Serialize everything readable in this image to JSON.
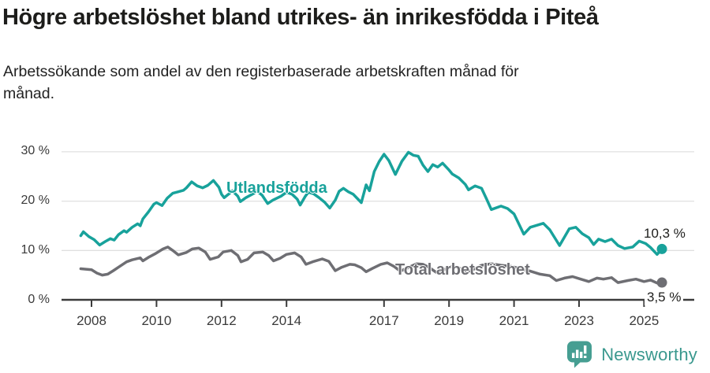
{
  "header": {
    "title": "Högre arbetslöshet bland utrikes- än inrikesfödda i Piteå",
    "subtitle": [
      "Arbetssökande som andel av den registerbaserade arbetskraften månad för",
      "månad."
    ]
  },
  "footer": {
    "brand": "Newsworthy"
  },
  "colors": {
    "accent_teal": "#18a29b",
    "series_gray": "#6e6e73",
    "axis": "#3b3b3b",
    "grid": "#e0e0e0",
    "text_dark": "#1d1d1b",
    "tick_text": "#3a3a3a",
    "logo_teal": "#469e92"
  },
  "chart_data": {
    "type": "line",
    "title": "Högre arbetslöshet bland utrikes- än inrikesfödda i Piteå",
    "subtitle": "Arbetssökande som andel av den registerbaserade arbetskraften månad för månad.",
    "xlabel": "",
    "ylabel": "",
    "unit": "%",
    "grid": "horizontal",
    "legend_position": "inline-labels",
    "xlim": [
      2007.6,
      2026.3
    ],
    "ylim": [
      0,
      32
    ],
    "x_ticks": [
      2008,
      2010,
      2012,
      2014,
      2017,
      2019,
      2021,
      2023,
      2025
    ],
    "x_tick_labels": [
      "2008",
      "2010",
      "2012",
      "2014",
      "2017",
      "2019",
      "2021",
      "2023",
      "2025"
    ],
    "y_ticks": [
      0,
      10,
      20,
      30
    ],
    "y_tick_labels": [
      "0 %",
      "10 %",
      "20 %",
      "30 %"
    ],
    "series": [
      {
        "name": "Utlandsfödda",
        "color": "#18a29b",
        "end_label": "10,3 %",
        "end_value": 10.3,
        "points": [
          [
            2007.67,
            13.0
          ],
          [
            2007.75,
            13.8
          ],
          [
            2007.92,
            12.8
          ],
          [
            2008.08,
            12.2
          ],
          [
            2008.25,
            11.1
          ],
          [
            2008.42,
            11.8
          ],
          [
            2008.58,
            12.4
          ],
          [
            2008.7,
            12.1
          ],
          [
            2008.83,
            13.2
          ],
          [
            2009.0,
            14.0
          ],
          [
            2009.08,
            13.7
          ],
          [
            2009.25,
            14.7
          ],
          [
            2009.42,
            15.4
          ],
          [
            2009.5,
            15.0
          ],
          [
            2009.58,
            16.4
          ],
          [
            2009.75,
            17.8
          ],
          [
            2009.92,
            19.4
          ],
          [
            2010.0,
            19.7
          ],
          [
            2010.17,
            19.1
          ],
          [
            2010.33,
            20.6
          ],
          [
            2010.5,
            21.6
          ],
          [
            2010.67,
            21.9
          ],
          [
            2010.83,
            22.2
          ],
          [
            2010.92,
            22.7
          ],
          [
            2011.08,
            23.9
          ],
          [
            2011.25,
            23.1
          ],
          [
            2011.42,
            22.7
          ],
          [
            2011.58,
            23.2
          ],
          [
            2011.75,
            24.2
          ],
          [
            2011.92,
            22.8
          ],
          [
            2012.0,
            21.4
          ],
          [
            2012.08,
            20.7
          ],
          [
            2012.25,
            21.6
          ],
          [
            2012.33,
            22.1
          ],
          [
            2012.5,
            21.0
          ],
          [
            2012.58,
            19.9
          ],
          [
            2012.75,
            20.7
          ],
          [
            2013.0,
            21.6
          ],
          [
            2013.08,
            22.1
          ],
          [
            2013.25,
            21.2
          ],
          [
            2013.42,
            19.5
          ],
          [
            2013.58,
            20.2
          ],
          [
            2013.83,
            21.0
          ],
          [
            2014.0,
            21.8
          ],
          [
            2014.17,
            21.4
          ],
          [
            2014.33,
            20.4
          ],
          [
            2014.42,
            19.2
          ],
          [
            2014.58,
            21.0
          ],
          [
            2014.67,
            21.8
          ],
          [
            2014.83,
            21.5
          ],
          [
            2015.0,
            20.7
          ],
          [
            2015.17,
            19.8
          ],
          [
            2015.33,
            18.6
          ],
          [
            2015.5,
            20.2
          ],
          [
            2015.62,
            22.0
          ],
          [
            2015.75,
            22.6
          ],
          [
            2015.9,
            21.9
          ],
          [
            2016.05,
            21.4
          ],
          [
            2016.2,
            20.4
          ],
          [
            2016.3,
            19.7
          ],
          [
            2016.45,
            23.3
          ],
          [
            2016.55,
            22.1
          ],
          [
            2016.7,
            26.0
          ],
          [
            2016.85,
            28.0
          ],
          [
            2017.0,
            29.5
          ],
          [
            2017.15,
            28.2
          ],
          [
            2017.35,
            25.4
          ],
          [
            2017.55,
            28.1
          ],
          [
            2017.75,
            29.9
          ],
          [
            2017.9,
            29.3
          ],
          [
            2018.05,
            29.1
          ],
          [
            2018.2,
            27.3
          ],
          [
            2018.35,
            26.0
          ],
          [
            2018.5,
            27.4
          ],
          [
            2018.65,
            26.9
          ],
          [
            2018.8,
            27.7
          ],
          [
            2019.0,
            26.3
          ],
          [
            2019.1,
            25.5
          ],
          [
            2019.3,
            24.7
          ],
          [
            2019.5,
            23.4
          ],
          [
            2019.6,
            22.3
          ],
          [
            2019.8,
            23.1
          ],
          [
            2020.0,
            22.6
          ],
          [
            2020.15,
            20.5
          ],
          [
            2020.3,
            18.3
          ],
          [
            2020.6,
            19.0
          ],
          [
            2020.8,
            18.5
          ],
          [
            2021.0,
            17.4
          ],
          [
            2021.3,
            13.3
          ],
          [
            2021.5,
            14.7
          ],
          [
            2021.9,
            15.5
          ],
          [
            2022.1,
            14.2
          ],
          [
            2022.4,
            11.0
          ],
          [
            2022.7,
            14.4
          ],
          [
            2022.9,
            14.7
          ],
          [
            2023.1,
            13.4
          ],
          [
            2023.3,
            12.6
          ],
          [
            2023.45,
            11.2
          ],
          [
            2023.6,
            12.3
          ],
          [
            2023.8,
            11.8
          ],
          [
            2024.0,
            12.3
          ],
          [
            2024.2,
            11.0
          ],
          [
            2024.4,
            10.4
          ],
          [
            2024.65,
            10.7
          ],
          [
            2024.85,
            11.9
          ],
          [
            2025.05,
            11.4
          ],
          [
            2025.2,
            10.6
          ],
          [
            2025.4,
            9.2
          ],
          [
            2025.55,
            10.3
          ]
        ]
      },
      {
        "name": "Total arbetslöshet",
        "color": "#6e6e73",
        "end_label": "3,5 %",
        "end_value": 3.5,
        "points": [
          [
            2007.67,
            6.3
          ],
          [
            2007.83,
            6.2
          ],
          [
            2008.0,
            6.1
          ],
          [
            2008.17,
            5.4
          ],
          [
            2008.33,
            5.0
          ],
          [
            2008.5,
            5.2
          ],
          [
            2008.67,
            5.9
          ],
          [
            2008.83,
            6.6
          ],
          [
            2009.08,
            7.7
          ],
          [
            2009.25,
            8.1
          ],
          [
            2009.5,
            8.5
          ],
          [
            2009.58,
            7.9
          ],
          [
            2009.75,
            8.6
          ],
          [
            2009.95,
            9.3
          ],
          [
            2010.2,
            10.3
          ],
          [
            2010.35,
            10.7
          ],
          [
            2010.5,
            10.0
          ],
          [
            2010.67,
            9.1
          ],
          [
            2010.92,
            9.6
          ],
          [
            2011.1,
            10.3
          ],
          [
            2011.3,
            10.5
          ],
          [
            2011.5,
            9.7
          ],
          [
            2011.65,
            8.2
          ],
          [
            2011.9,
            8.7
          ],
          [
            2012.05,
            9.7
          ],
          [
            2012.3,
            10.0
          ],
          [
            2012.5,
            9.0
          ],
          [
            2012.6,
            7.7
          ],
          [
            2012.8,
            8.2
          ],
          [
            2013.0,
            9.5
          ],
          [
            2013.27,
            9.7
          ],
          [
            2013.45,
            9.0
          ],
          [
            2013.6,
            7.9
          ],
          [
            2013.8,
            8.4
          ],
          [
            2014.0,
            9.2
          ],
          [
            2014.25,
            9.5
          ],
          [
            2014.45,
            8.7
          ],
          [
            2014.6,
            7.2
          ],
          [
            2014.8,
            7.7
          ],
          [
            2015.1,
            8.3
          ],
          [
            2015.3,
            7.8
          ],
          [
            2015.5,
            5.9
          ],
          [
            2015.7,
            6.6
          ],
          [
            2015.95,
            7.2
          ],
          [
            2016.1,
            7.1
          ],
          [
            2016.3,
            6.5
          ],
          [
            2016.45,
            5.7
          ],
          [
            2016.65,
            6.4
          ],
          [
            2016.9,
            7.2
          ],
          [
            2017.1,
            7.5
          ],
          [
            2017.3,
            6.8
          ],
          [
            2017.5,
            5.8
          ],
          [
            2017.7,
            6.4
          ],
          [
            2018.0,
            7.3
          ],
          [
            2018.2,
            7.2
          ],
          [
            2018.4,
            6.5
          ],
          [
            2018.6,
            5.6
          ],
          [
            2018.8,
            6.0
          ],
          [
            2019.1,
            6.8
          ],
          [
            2019.3,
            6.5
          ],
          [
            2019.5,
            5.6
          ],
          [
            2019.7,
            6.0
          ],
          [
            2020.0,
            7.0
          ],
          [
            2020.3,
            7.3
          ],
          [
            2020.6,
            7.0
          ],
          [
            2020.9,
            6.8
          ],
          [
            2021.2,
            6.3
          ],
          [
            2021.5,
            5.8
          ],
          [
            2021.8,
            5.2
          ],
          [
            2022.1,
            4.9
          ],
          [
            2022.3,
            3.9
          ],
          [
            2022.55,
            4.4
          ],
          [
            2022.8,
            4.7
          ],
          [
            2023.05,
            4.2
          ],
          [
            2023.3,
            3.7
          ],
          [
            2023.55,
            4.4
          ],
          [
            2023.75,
            4.2
          ],
          [
            2024.0,
            4.5
          ],
          [
            2024.2,
            3.5
          ],
          [
            2024.5,
            3.9
          ],
          [
            2024.75,
            4.2
          ],
          [
            2025.0,
            3.7
          ],
          [
            2025.2,
            4.0
          ],
          [
            2025.4,
            3.4
          ],
          [
            2025.55,
            3.5
          ]
        ]
      }
    ]
  }
}
